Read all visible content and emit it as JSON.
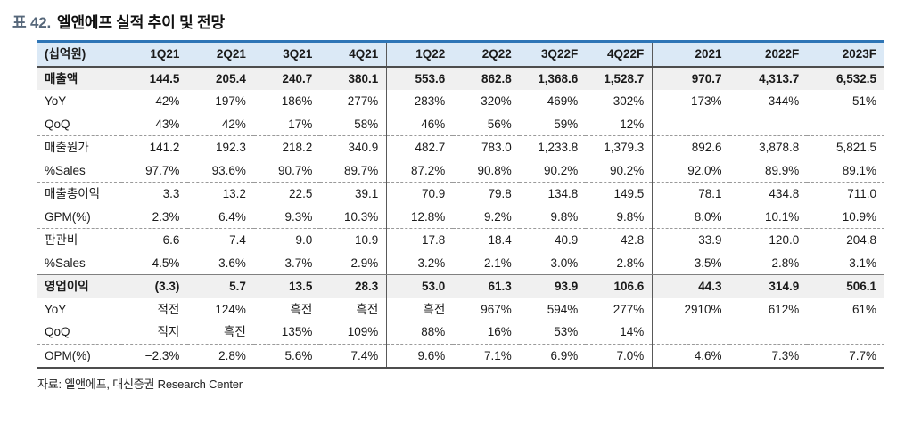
{
  "title": {
    "prefix": "표 42.",
    "text": "엘앤에프 실적 추이 및 전망"
  },
  "table": {
    "columns": [
      "(십억원)",
      "1Q21",
      "2Q21",
      "3Q21",
      "4Q21",
      "1Q22",
      "2Q22",
      "3Q22F",
      "4Q22F",
      "2021",
      "2022F",
      "2023F"
    ],
    "divider_column_indices": [
      5,
      9
    ],
    "rows": [
      {
        "label": "매출액",
        "bold": true,
        "shaded": true,
        "separator": "none",
        "values": [
          "144.5",
          "205.4",
          "240.7",
          "380.1",
          "553.6",
          "862.8",
          "1,368.6",
          "1,528.7",
          "970.7",
          "4,313.7",
          "6,532.5"
        ]
      },
      {
        "label": "YoY",
        "bold": false,
        "shaded": false,
        "separator": "none",
        "values": [
          "42%",
          "197%",
          "186%",
          "277%",
          "283%",
          "320%",
          "469%",
          "302%",
          "173%",
          "344%",
          "51%"
        ]
      },
      {
        "label": "QoQ",
        "bold": false,
        "shaded": false,
        "separator": "dashed",
        "values": [
          "43%",
          "42%",
          "17%",
          "58%",
          "46%",
          "56%",
          "59%",
          "12%",
          "",
          "",
          ""
        ]
      },
      {
        "label": "매출원가",
        "bold": false,
        "shaded": false,
        "separator": "none",
        "values": [
          "141.2",
          "192.3",
          "218.2",
          "340.9",
          "482.7",
          "783.0",
          "1,233.8",
          "1,379.3",
          "892.6",
          "3,878.8",
          "5,821.5"
        ]
      },
      {
        "label": "%Sales",
        "bold": false,
        "shaded": false,
        "separator": "dashed",
        "values": [
          "97.7%",
          "93.6%",
          "90.7%",
          "89.7%",
          "87.2%",
          "90.8%",
          "90.2%",
          "90.2%",
          "92.0%",
          "89.9%",
          "89.1%"
        ]
      },
      {
        "label": "매출총이익",
        "bold": false,
        "shaded": false,
        "separator": "none",
        "values": [
          "3.3",
          "13.2",
          "22.5",
          "39.1",
          "70.9",
          "79.8",
          "134.8",
          "149.5",
          "78.1",
          "434.8",
          "711.0"
        ]
      },
      {
        "label": "GPM(%)",
        "bold": false,
        "shaded": false,
        "separator": "dashed",
        "values": [
          "2.3%",
          "6.4%",
          "9.3%",
          "10.3%",
          "12.8%",
          "9.2%",
          "9.8%",
          "9.8%",
          "8.0%",
          "10.1%",
          "10.9%"
        ]
      },
      {
        "label": "판관비",
        "bold": false,
        "shaded": false,
        "separator": "none",
        "values": [
          "6.6",
          "7.4",
          "9.0",
          "10.9",
          "17.8",
          "18.4",
          "40.9",
          "42.8",
          "33.9",
          "120.0",
          "204.8"
        ]
      },
      {
        "label": "%Sales",
        "bold": false,
        "shaded": false,
        "separator": "solid",
        "values": [
          "4.5%",
          "3.6%",
          "3.7%",
          "2.9%",
          "3.2%",
          "2.1%",
          "3.0%",
          "2.8%",
          "3.5%",
          "2.8%",
          "3.1%"
        ]
      },
      {
        "label": "영업이익",
        "bold": true,
        "shaded": true,
        "separator": "none",
        "values": [
          "(3.3)",
          "5.7",
          "13.5",
          "28.3",
          "53.0",
          "61.3",
          "93.9",
          "106.6",
          "44.3",
          "314.9",
          "506.1"
        ]
      },
      {
        "label": "YoY",
        "bold": false,
        "shaded": false,
        "separator": "none",
        "values": [
          "적전",
          "124%",
          "흑전",
          "흑전",
          "흑전",
          "967%",
          "594%",
          "277%",
          "2910%",
          "612%",
          "61%"
        ]
      },
      {
        "label": "QoQ",
        "bold": false,
        "shaded": false,
        "separator": "dashed",
        "values": [
          "적지",
          "흑전",
          "135%",
          "109%",
          "88%",
          "16%",
          "53%",
          "14%",
          "",
          "",
          ""
        ]
      },
      {
        "label": "OPM(%)",
        "bold": false,
        "shaded": false,
        "separator": "none",
        "values": [
          "−2.3%",
          "2.8%",
          "5.6%",
          "7.4%",
          "9.6%",
          "7.1%",
          "6.9%",
          "7.0%",
          "4.6%",
          "7.3%",
          "7.7%"
        ]
      }
    ]
  },
  "footer": {
    "source_text": "자료: 엘앤에프, 대신증권 Research Center"
  },
  "colors": {
    "top_border_accent": "#2e75b6",
    "header_bg": "#dbe9f6",
    "shaded_row_bg": "#f0f0f0",
    "title_prefix": "#56677a"
  }
}
